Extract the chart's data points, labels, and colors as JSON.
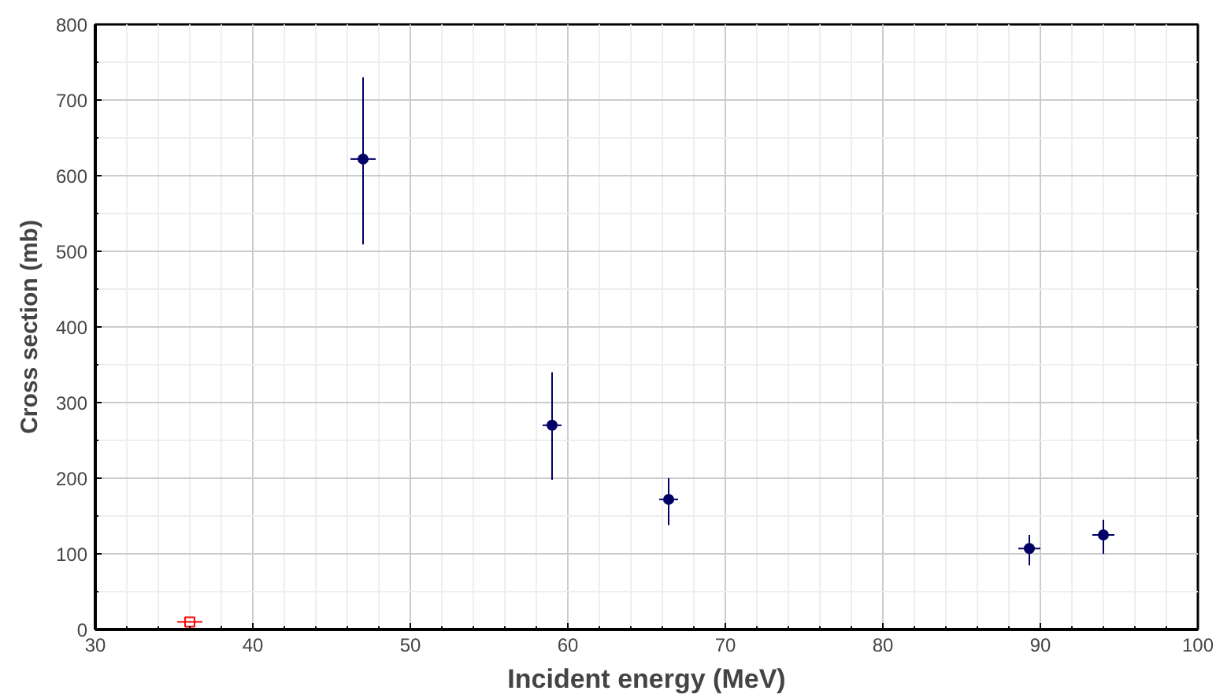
{
  "chart_data": {
    "type": "scatter",
    "xlabel": "Incident energy (MeV)",
    "ylabel": "Cross section (mb)",
    "xlim": [
      30,
      100
    ],
    "xticks": [
      30,
      40,
      50,
      60,
      70,
      80,
      90,
      100
    ],
    "ylim": [
      0,
      800
    ],
    "yticks": [
      0,
      100,
      200,
      300,
      400,
      500,
      600,
      700,
      800
    ],
    "grid": true,
    "series": [
      {
        "color": "#ff0000",
        "marker": "square",
        "x": [
          36
        ],
        "values": [
          10
        ],
        "errors": [
          null
        ],
        "xerrors": [
          0.8
        ]
      },
      {
        "color": "#000066",
        "marker": "circle",
        "x": [
          47,
          59,
          66.4,
          89.3,
          94
        ],
        "values": [
          622,
          270,
          172,
          107,
          125
        ],
        "errors": [
          [
            509,
            730
          ],
          [
            198,
            340
          ],
          [
            138,
            200
          ],
          [
            85,
            125
          ],
          [
            100,
            145
          ]
        ],
        "xerrors": [
          0.8,
          0.6,
          0.6,
          0.7,
          0.7
        ]
      }
    ]
  }
}
